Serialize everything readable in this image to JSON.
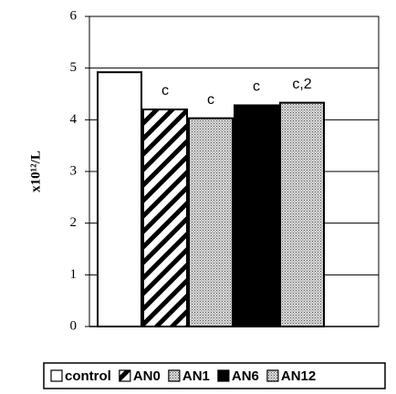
{
  "chart_data": {
    "type": "bar",
    "y_label": "x10¹²/L",
    "series": [
      {
        "name": "control",
        "color": "#ffffff",
        "pattern": "none",
        "values": [
          4.92
        ]
      },
      {
        "name": "AN0",
        "color": "#ffffff",
        "pattern": "diagonal",
        "values": [
          4.2
        ],
        "annotation": "c"
      },
      {
        "name": "AN1",
        "color": "#d8d8d8",
        "pattern": "dots",
        "values": [
          4.03
        ],
        "annotation": "c"
      },
      {
        "name": "AN6",
        "color": "#000000",
        "pattern": "none",
        "values": [
          4.28
        ],
        "annotation": "c"
      },
      {
        "name": "AN12",
        "color": "#d8d8d8",
        "pattern": "dots",
        "values": [
          4.33
        ],
        "annotation": "c,2"
      }
    ],
    "ylim": [
      0,
      6
    ],
    "yticks": [
      0,
      1,
      2,
      3,
      4,
      5,
      6
    ],
    "grid": true,
    "legend": "bottom"
  }
}
